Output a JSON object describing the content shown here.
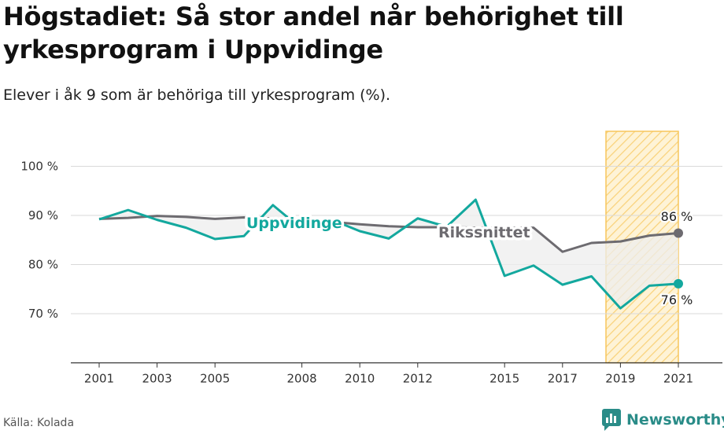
{
  "title": "Högstadiet: Så stor andel når behörighet till yrkesprogram i Uppvidinge",
  "subtitle": "Elever i åk 9 som är behöriga till yrkesprogram (%).",
  "source": "Källa: Kolada",
  "brand": {
    "name": "Newsworthy",
    "icon": "newsworthy-logo-icon"
  },
  "colors": {
    "uppvidinge": "#13a89e",
    "riket": "#6d6b70",
    "highlight_fill": "#fde9b8",
    "highlight_stroke": "#f7c65c",
    "grid": "#d9d9d9"
  },
  "chart_data": {
    "type": "line",
    "x": [
      2001,
      2002,
      2003,
      2004,
      2005,
      2006,
      2007,
      2008,
      2009,
      2010,
      2011,
      2012,
      2013,
      2014,
      2015,
      2016,
      2017,
      2018,
      2019,
      2020,
      2021
    ],
    "x_ticks": [
      2001,
      2003,
      2005,
      2008,
      2010,
      2012,
      2015,
      2017,
      2019,
      2021
    ],
    "y_ticks": [
      70,
      80,
      90,
      100
    ],
    "y_tick_labels": [
      "70 %",
      "80 %",
      "90 %",
      "100 %"
    ],
    "ylim": [
      60,
      105
    ],
    "series": [
      {
        "name": "Uppvidinge",
        "label": "Uppvidinge",
        "values": [
          89.2,
          91.1,
          89.1,
          87.5,
          85.2,
          85.8,
          92.1,
          87.2,
          89.2,
          86.8,
          85.3,
          89.4,
          87.7,
          93.2,
          77.7,
          79.8,
          75.9,
          77.6,
          71.1,
          75.7,
          76.1
        ],
        "end_label": "76 %"
      },
      {
        "name": "Rikssnittet",
        "label": "Rikssnittet",
        "values": [
          89.3,
          89.5,
          89.9,
          89.7,
          89.3,
          89.6,
          89.4,
          89.0,
          88.7,
          88.2,
          87.8,
          87.6,
          87.6,
          87.5,
          87.5,
          87.5,
          82.6,
          84.4,
          84.7,
          85.9,
          86.4
        ],
        "end_label": "86 %"
      }
    ],
    "highlight_range": [
      2018.5,
      2021
    ],
    "grid": "horizontal",
    "xlabel": "",
    "ylabel": ""
  }
}
